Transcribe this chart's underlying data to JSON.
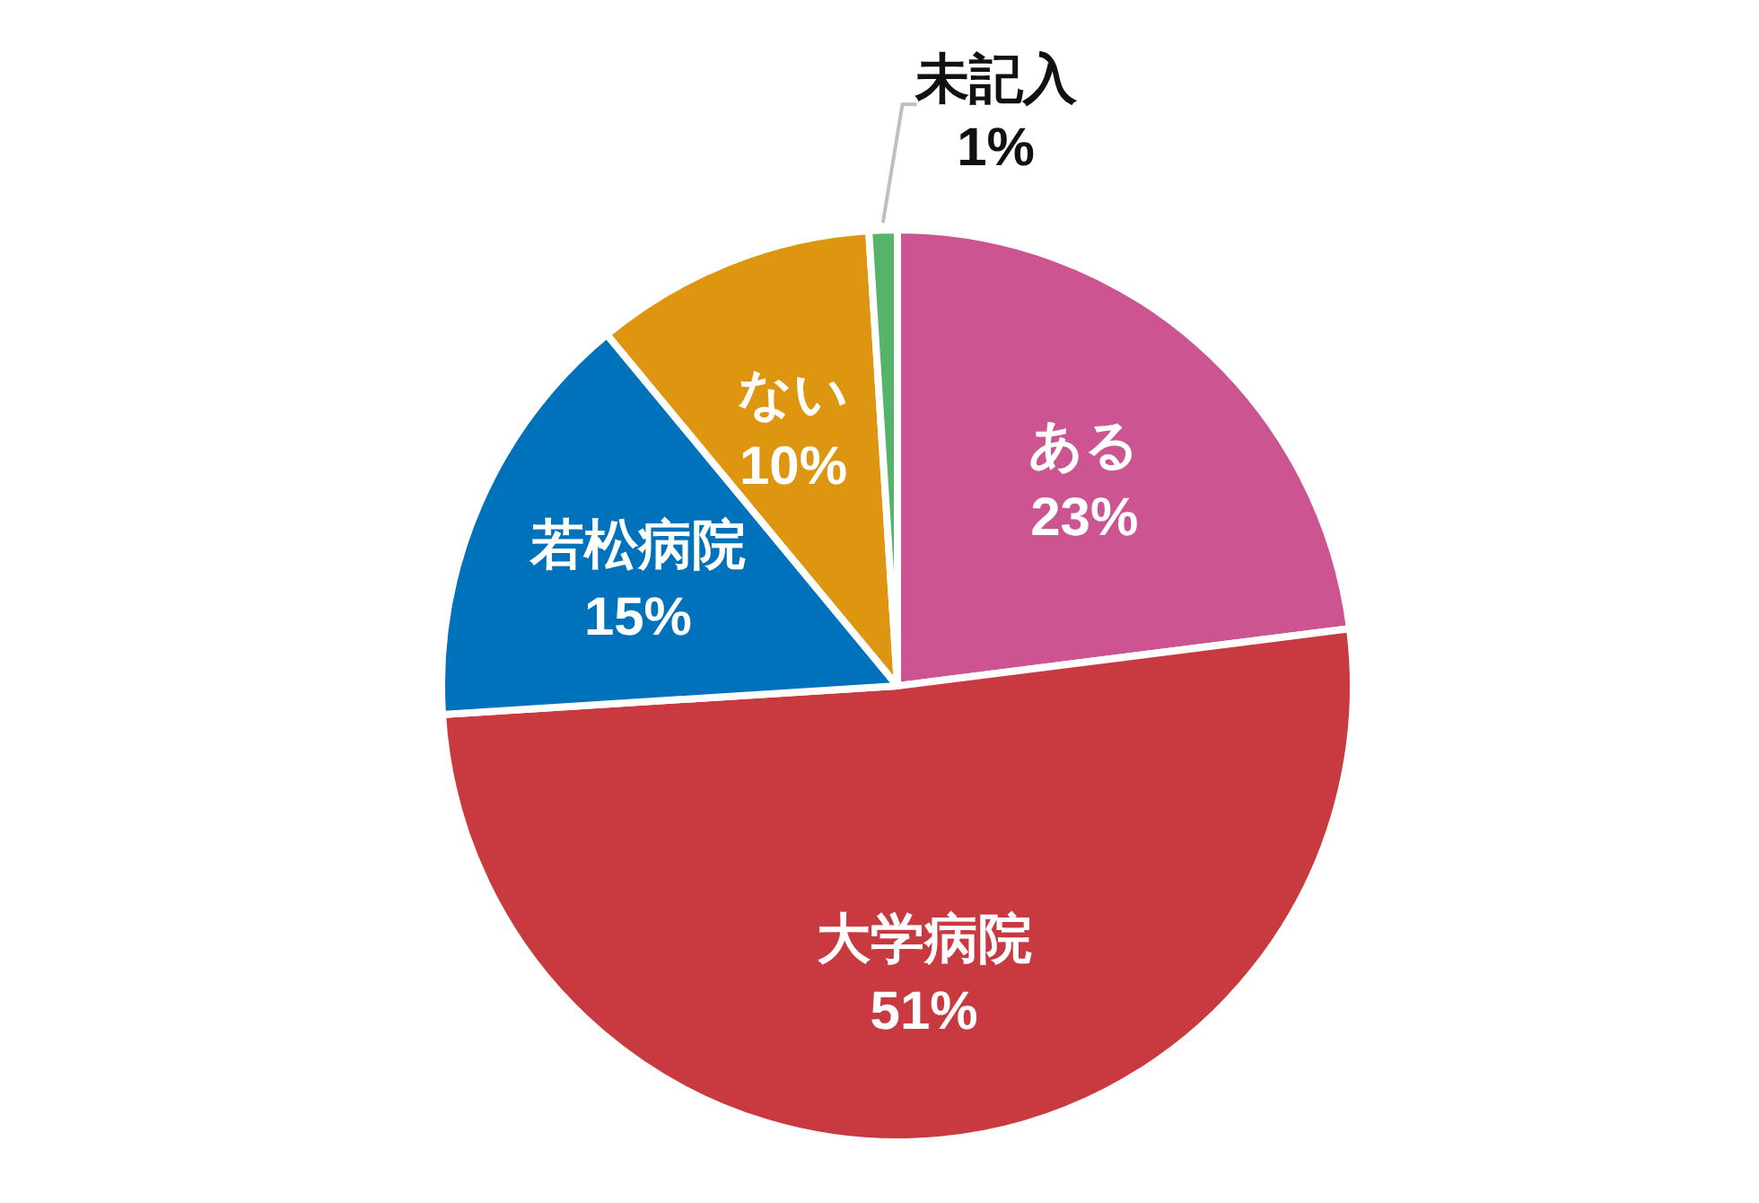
{
  "chart_data": {
    "type": "pie",
    "categories": [
      "ある",
      "大学病院",
      "若松病院",
      "ない",
      "未記入"
    ],
    "values": [
      23,
      51,
      15,
      10,
      1
    ],
    "colors": [
      "#cc5490",
      "#c93a40",
      "#0072bc",
      "#de9610",
      "#56b36a"
    ],
    "value_labels": [
      "23%",
      "51%",
      "15%",
      "10%",
      "1%"
    ]
  }
}
